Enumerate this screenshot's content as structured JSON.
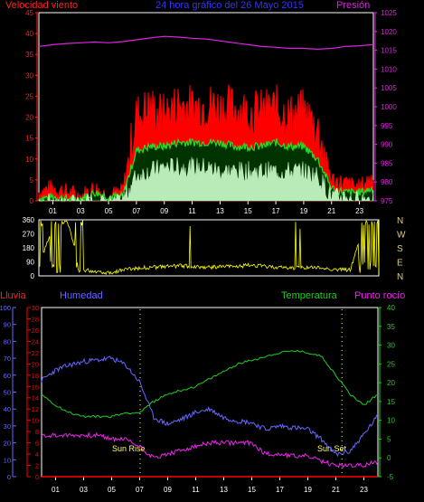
{
  "colors": {
    "wind": "#ff2020",
    "gust": "#ff0000",
    "avg": "#22dd22",
    "low": "#ccffcc",
    "pressure": "#dd22dd",
    "title": "#3333ff",
    "dir": "#ffff00",
    "hum": "#6666ff",
    "temp": "#22cc22",
    "dew": "#ee22ee",
    "rain": "#ff0000",
    "axis_white": "#ffffff",
    "label_yellow": "#ffff66",
    "cardinal": "#ddcc88"
  },
  "header": {
    "wind_label": "Velocidad viento",
    "title": "24 hora gráfico del  26 Mayo 2015",
    "pressure_label": "Presión"
  },
  "lower_header": {
    "rain_label": "Lluvia",
    "hum_label": "Humedad",
    "temp_label": "Temperatura",
    "dew_label": "Punto rocío"
  },
  "annotations": {
    "sunrise": "Sun Rise",
    "sunset": "Sun Set"
  },
  "chart_data": [
    {
      "type": "line",
      "name": "wind-pressure",
      "x_ticks": [
        "01",
        "03",
        "05",
        "07",
        "09",
        "11",
        "13",
        "15",
        "17",
        "19",
        "21",
        "23"
      ],
      "ylim": [
        0,
        45
      ],
      "y_ticks": [
        0,
        5,
        10,
        15,
        20,
        25,
        30,
        35,
        40,
        45
      ],
      "y2lim": [
        975,
        1025
      ],
      "y2_ticks": [
        975,
        980,
        985,
        990,
        995,
        1000,
        1005,
        1010,
        1015,
        1020,
        1025
      ],
      "hours": [
        0,
        1,
        2,
        3,
        4,
        5,
        6,
        7,
        8,
        9,
        10,
        11,
        12,
        13,
        14,
        15,
        16,
        17,
        18,
        19,
        20,
        21,
        22,
        23,
        24
      ],
      "pressure": [
        1016,
        1016.5,
        1016.8,
        1017,
        1017.2,
        1017,
        1017.3,
        1017.8,
        1018.3,
        1018.7,
        1018.5,
        1018.2,
        1018,
        1017.5,
        1017,
        1016.5,
        1016,
        1015.8,
        1015.5,
        1015.5,
        1015.3,
        1015.5,
        1016,
        1016.2,
        1016.5
      ],
      "gust": [
        2,
        3,
        2,
        1,
        3,
        1,
        2,
        20,
        22,
        20,
        23,
        22,
        23,
        22,
        22,
        21,
        21,
        22,
        20,
        21,
        17,
        5,
        4,
        3,
        6
      ],
      "avg": [
        0.5,
        1,
        0.5,
        0.5,
        2,
        1,
        1,
        12,
        13,
        13,
        14,
        14,
        14,
        14,
        13,
        13,
        13,
        14,
        13,
        13,
        10,
        3,
        2,
        2,
        3
      ],
      "low": [
        0,
        0,
        0,
        0,
        0,
        0,
        0,
        6,
        7,
        8,
        8,
        8,
        8,
        7,
        7,
        7,
        7,
        7,
        7,
        7,
        6,
        1,
        1,
        0,
        1
      ]
    },
    {
      "type": "line",
      "name": "wind-direction",
      "y_ticks": [
        360,
        270,
        180,
        90,
        0
      ],
      "cardinals": [
        "N",
        "W",
        "S",
        "E",
        "N"
      ],
      "hours": [
        0,
        1,
        2,
        3,
        4,
        5,
        6,
        7,
        8,
        9,
        10,
        11,
        12,
        13,
        14,
        15,
        16,
        17,
        18,
        19,
        20,
        21,
        22,
        23,
        24
      ],
      "direction": [
        60,
        330,
        350,
        40,
        30,
        20,
        40,
        50,
        55,
        60,
        65,
        60,
        55,
        60,
        60,
        70,
        60,
        55,
        50,
        55,
        50,
        40,
        40,
        350,
        340
      ]
    },
    {
      "type": "line",
      "name": "humidity-temperature",
      "x_ticks": [
        "01",
        "03",
        "05",
        "07",
        "09",
        "11",
        "13",
        "15",
        "17",
        "19",
        "21",
        "23"
      ],
      "rain_ticks": [
        0,
        2,
        4,
        6,
        8,
        10,
        12,
        14,
        16,
        18,
        20,
        22,
        24,
        26,
        28,
        30
      ],
      "hum_ticks": [
        0,
        10,
        20,
        30,
        40,
        50,
        60,
        70,
        80,
        90,
        100
      ],
      "temp_ticks": [
        -5,
        0,
        5,
        10,
        15,
        20,
        25,
        30,
        35,
        40
      ],
      "hours": [
        0,
        1,
        2,
        3,
        4,
        5,
        6,
        7,
        8,
        9,
        10,
        11,
        12,
        13,
        14,
        15,
        16,
        17,
        18,
        19,
        20,
        21,
        22,
        23,
        24
      ],
      "humidity": [
        57,
        63,
        66,
        68,
        69,
        70,
        66,
        56,
        35,
        31,
        34,
        38,
        40,
        35,
        33,
        32,
        28,
        30,
        29,
        28,
        22,
        13,
        15,
        25,
        36
      ],
      "temperature": [
        17,
        14,
        12,
        11,
        11,
        11,
        12,
        12,
        15,
        17,
        18,
        19,
        21,
        23,
        25,
        26,
        27,
        28,
        28.5,
        28,
        27,
        22,
        17,
        14,
        17
      ],
      "dewpoint": [
        6,
        6,
        6,
        6,
        6,
        5,
        5,
        3,
        0,
        1,
        2,
        3,
        4,
        4,
        4,
        4,
        1,
        1,
        0.5,
        0.5,
        -1,
        -2,
        -2,
        -2,
        -1
      ],
      "rain": [
        0,
        0,
        0,
        0,
        0,
        0,
        0,
        0,
        0,
        0,
        0,
        0,
        0,
        0,
        0,
        0,
        0,
        0,
        0,
        0,
        0,
        0,
        0,
        0,
        0
      ]
    }
  ]
}
